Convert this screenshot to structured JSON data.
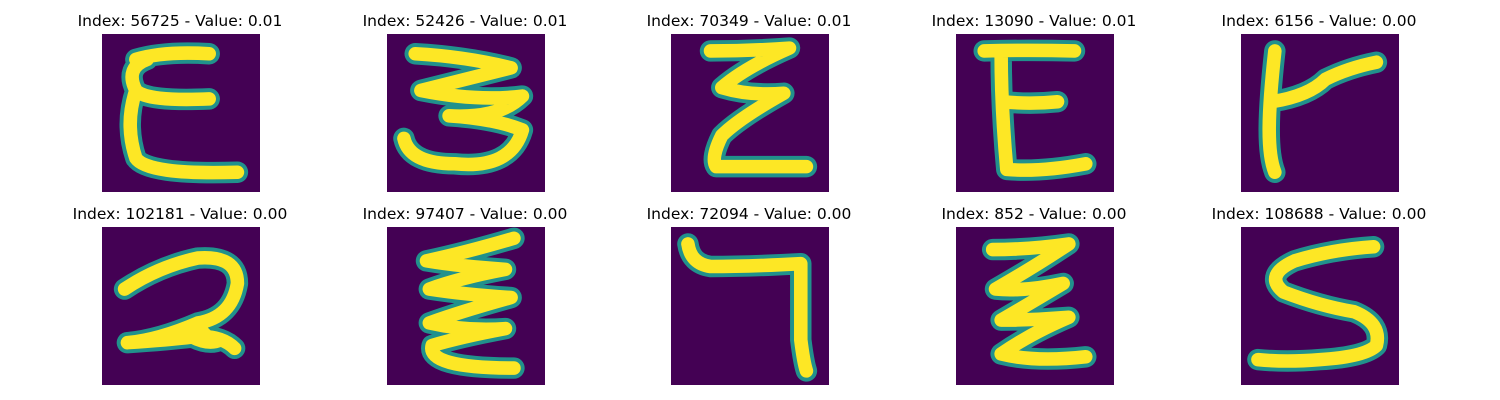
{
  "panels": [
    {
      "index": "56725",
      "value": "0.01",
      "title": "Index: 56725 - Value: 0.01",
      "glyph": "E-cursive",
      "colors": {
        "background": "#440154",
        "stroke": "#fde725",
        "edge": "#21918c"
      }
    },
    {
      "index": "52426",
      "value": "0.01",
      "title": "Index: 52426 - Value: 0.01",
      "glyph": "3-rotated-E"
    },
    {
      "index": "70349",
      "value": "0.01",
      "title": "Index: 70349 - Value: 0.01",
      "glyph": "E-zigzag"
    },
    {
      "index": "13090",
      "value": "0.01",
      "title": "Index: 13090 - Value: 0.01",
      "glyph": "E-block"
    },
    {
      "index": "6156",
      "value": "0.00",
      "title": "Index: 6156 - Value: 0.00",
      "glyph": "Y-rotated"
    },
    {
      "index": "102181",
      "value": "0.00",
      "title": "Index: 102181 - Value: 0.00",
      "glyph": "2-shaped"
    },
    {
      "index": "97407",
      "value": "0.00",
      "title": "Index: 97407 - Value: 0.00",
      "glyph": "E-wavy"
    },
    {
      "index": "72094",
      "value": "0.00",
      "title": "Index: 72094 - Value: 0.00",
      "glyph": "7-shaped"
    },
    {
      "index": "852",
      "value": "0.00",
      "title": "Index: 852 - Value: 0.00",
      "glyph": "Z-zigzag"
    },
    {
      "index": "108688",
      "value": "0.00",
      "title": "Index: 108688 - Value: 0.00",
      "glyph": "S-shaped"
    }
  ]
}
